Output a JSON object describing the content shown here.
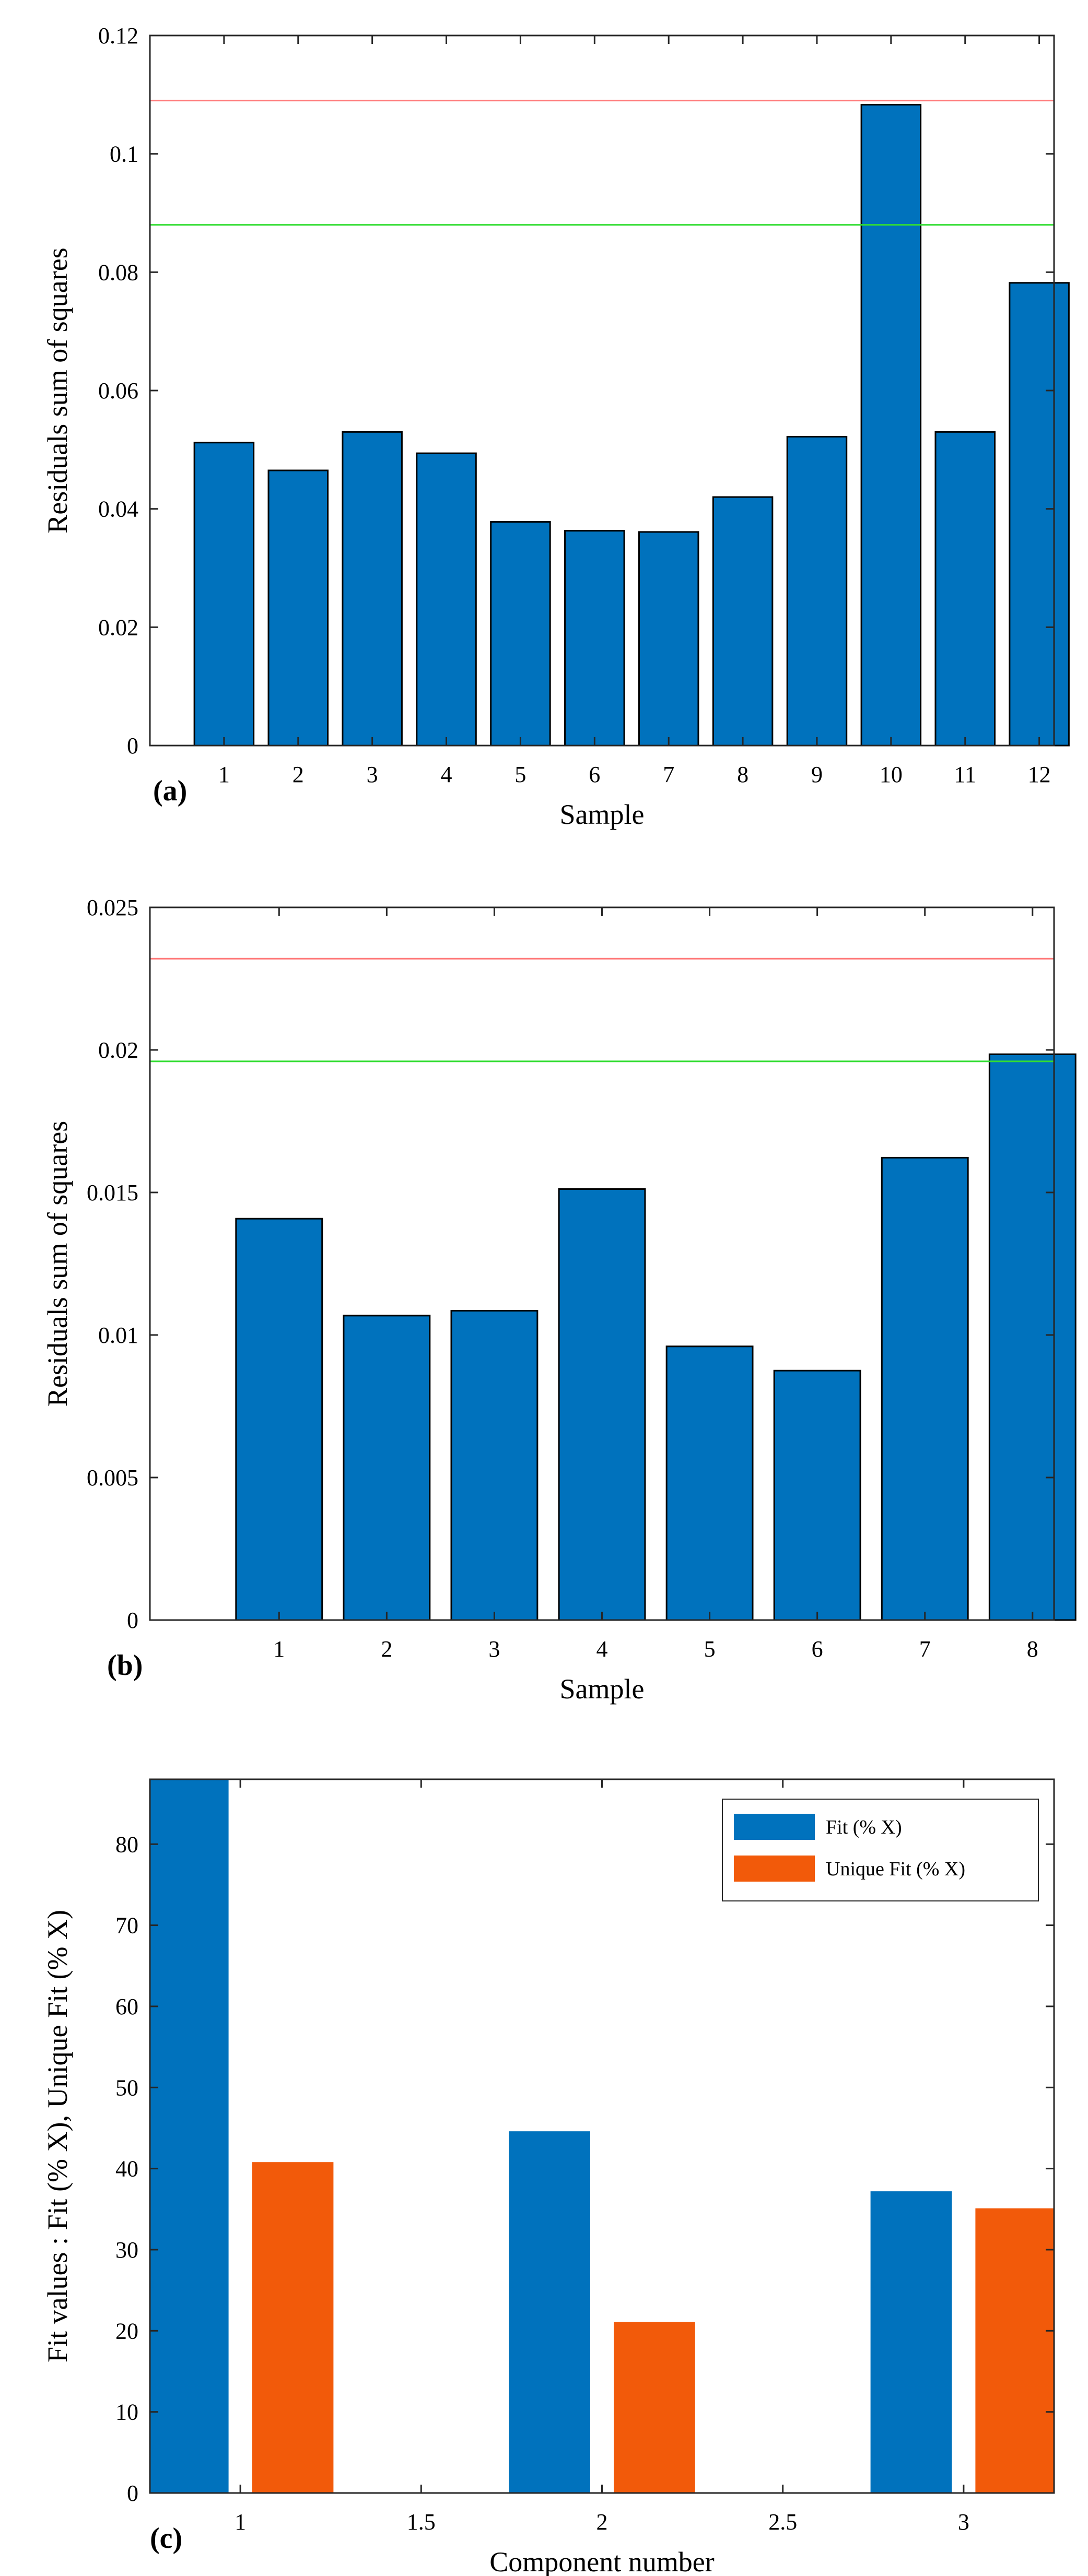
{
  "figure": {
    "background": "#ffffff",
    "colors": {
      "bar_blue": "#0072BD",
      "bar_orange": "#F25A0A",
      "line_red": "#FF7A7A",
      "line_green": "#33DD33",
      "axis": "#262626"
    }
  },
  "chart_data": [
    {
      "id": "a",
      "panel_label": "(a)",
      "type": "bar",
      "xlabel": "Sample",
      "ylabel": "Residuals sum of squares",
      "categories": [
        "1",
        "2",
        "3",
        "4",
        "5",
        "6",
        "7",
        "8",
        "9",
        "10",
        "11",
        "12"
      ],
      "x": [
        1,
        2,
        3,
        4,
        5,
        6,
        7,
        8,
        9,
        10,
        11,
        12
      ],
      "values": [
        0.0512,
        0.0465,
        0.053,
        0.0494,
        0.0378,
        0.0363,
        0.0361,
        0.042,
        0.0522,
        0.1083,
        0.053,
        0.0782
      ],
      "ylim": [
        0,
        0.12
      ],
      "xlim": [
        0,
        12.2
      ],
      "yticks": [
        0,
        0.02,
        0.04,
        0.06,
        0.08,
        0.1,
        0.12
      ],
      "ytick_labels": [
        "0",
        "0.02",
        "0.04",
        "0.06",
        "0.08",
        "0.1",
        "0.12"
      ],
      "bar_width": 0.8,
      "hlines": [
        {
          "name": "limit-red",
          "value": 0.109,
          "color": "#FF7A7A"
        },
        {
          "name": "limit-green",
          "value": 0.088,
          "color": "#33DD33"
        }
      ],
      "grid": false
    },
    {
      "id": "b",
      "panel_label": "(b)",
      "type": "bar",
      "xlabel": "Sample",
      "ylabel": "Residuals sum of squares",
      "categories": [
        "1",
        "2",
        "3",
        "4",
        "5",
        "6",
        "7",
        "8"
      ],
      "x": [
        1,
        2,
        3,
        4,
        5,
        6,
        7,
        8
      ],
      "values": [
        0.01408,
        0.01068,
        0.01085,
        0.01512,
        0.0096,
        0.00875,
        0.01622,
        0.01985
      ],
      "ylim": [
        0,
        0.025
      ],
      "xlim": [
        -0.2,
        8.2
      ],
      "yticks": [
        0,
        0.005,
        0.01,
        0.015,
        0.02,
        0.025
      ],
      "ytick_labels": [
        "0",
        "0.005",
        "0.01",
        "0.015",
        "0.02",
        "0.025"
      ],
      "bar_width": 0.8,
      "hlines": [
        {
          "name": "limit-red",
          "value": 0.0232,
          "color": "#FF7A7A"
        },
        {
          "name": "limit-green",
          "value": 0.0196,
          "color": "#33DD33"
        }
      ],
      "grid": false
    },
    {
      "id": "c",
      "panel_label": "(c)",
      "type": "bar",
      "xlabel": "Component number",
      "ylabel": "Fit values : Fit (% X), Unique Fit (% X)",
      "x_values": [
        1,
        2,
        3
      ],
      "xlim": [
        0.75,
        3.25
      ],
      "xticks": [
        1,
        1.5,
        2,
        2.5,
        3
      ],
      "xtick_labels": [
        "1",
        "1.5",
        "2",
        "2.5",
        "3"
      ],
      "ylim": [
        0,
        88
      ],
      "yticks": [
        0,
        10,
        20,
        30,
        40,
        50,
        60,
        70,
        80
      ],
      "ytick_labels": [
        "0",
        "10",
        "20",
        "30",
        "40",
        "50",
        "60",
        "70",
        "80"
      ],
      "bar_width": 0.225,
      "bar_offset": 0.145,
      "series": [
        {
          "name": "Fit (% X)",
          "color": "#0072BD",
          "values": [
            88.5,
            44.6,
            37.2
          ]
        },
        {
          "name": "Unique Fit (% X)",
          "color": "#F25A0A",
          "values": [
            40.8,
            21.1,
            35.1
          ]
        }
      ],
      "legend_position": "top-right",
      "grid": false
    }
  ]
}
